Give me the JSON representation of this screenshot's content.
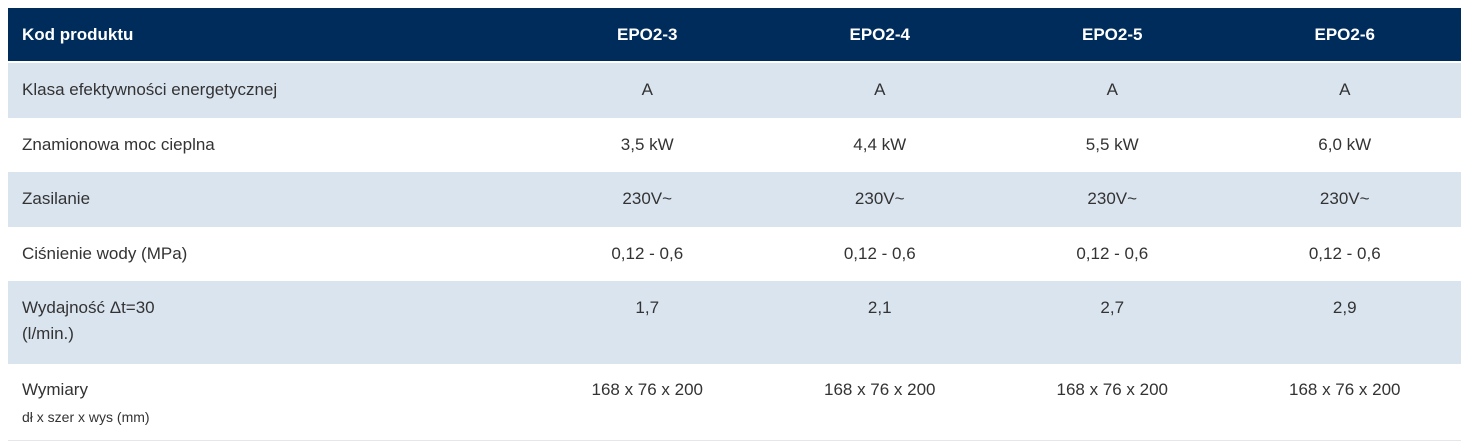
{
  "table": {
    "header": {
      "label": "Kod produktu",
      "models": [
        "EPO2-3",
        "EPO2-4",
        "EPO2-5",
        "EPO2-6"
      ]
    },
    "rows": [
      {
        "label": "Klasa efektywności energetycznej",
        "values": [
          "A",
          "A",
          "A",
          "A"
        ]
      },
      {
        "label": "Znamionowa moc cieplna",
        "values": [
          "3,5 kW",
          "4,4 kW",
          "5,5 kW",
          "6,0 kW"
        ]
      },
      {
        "label": "Zasilanie",
        "values": [
          "230V~",
          "230V~",
          "230V~",
          "230V~"
        ]
      },
      {
        "label": "Ciśnienie wody (MPa)",
        "values": [
          "0,12 - 0,6",
          "0,12 - 0,6",
          "0,12 - 0,6",
          "0,12 - 0,6"
        ]
      },
      {
        "label_line1": "Wydajność Δt=30",
        "label_line2": "(l/min.)",
        "values": [
          "1,7",
          "2,1",
          "2,7",
          "2,9"
        ]
      },
      {
        "label": "Wymiary",
        "sublabel": "dł x szer x wys (mm)",
        "values": [
          "168 x 76 x 200",
          "168 x 76 x 200",
          "168 x 76 x 200",
          "168 x 76 x 200"
        ]
      }
    ]
  }
}
